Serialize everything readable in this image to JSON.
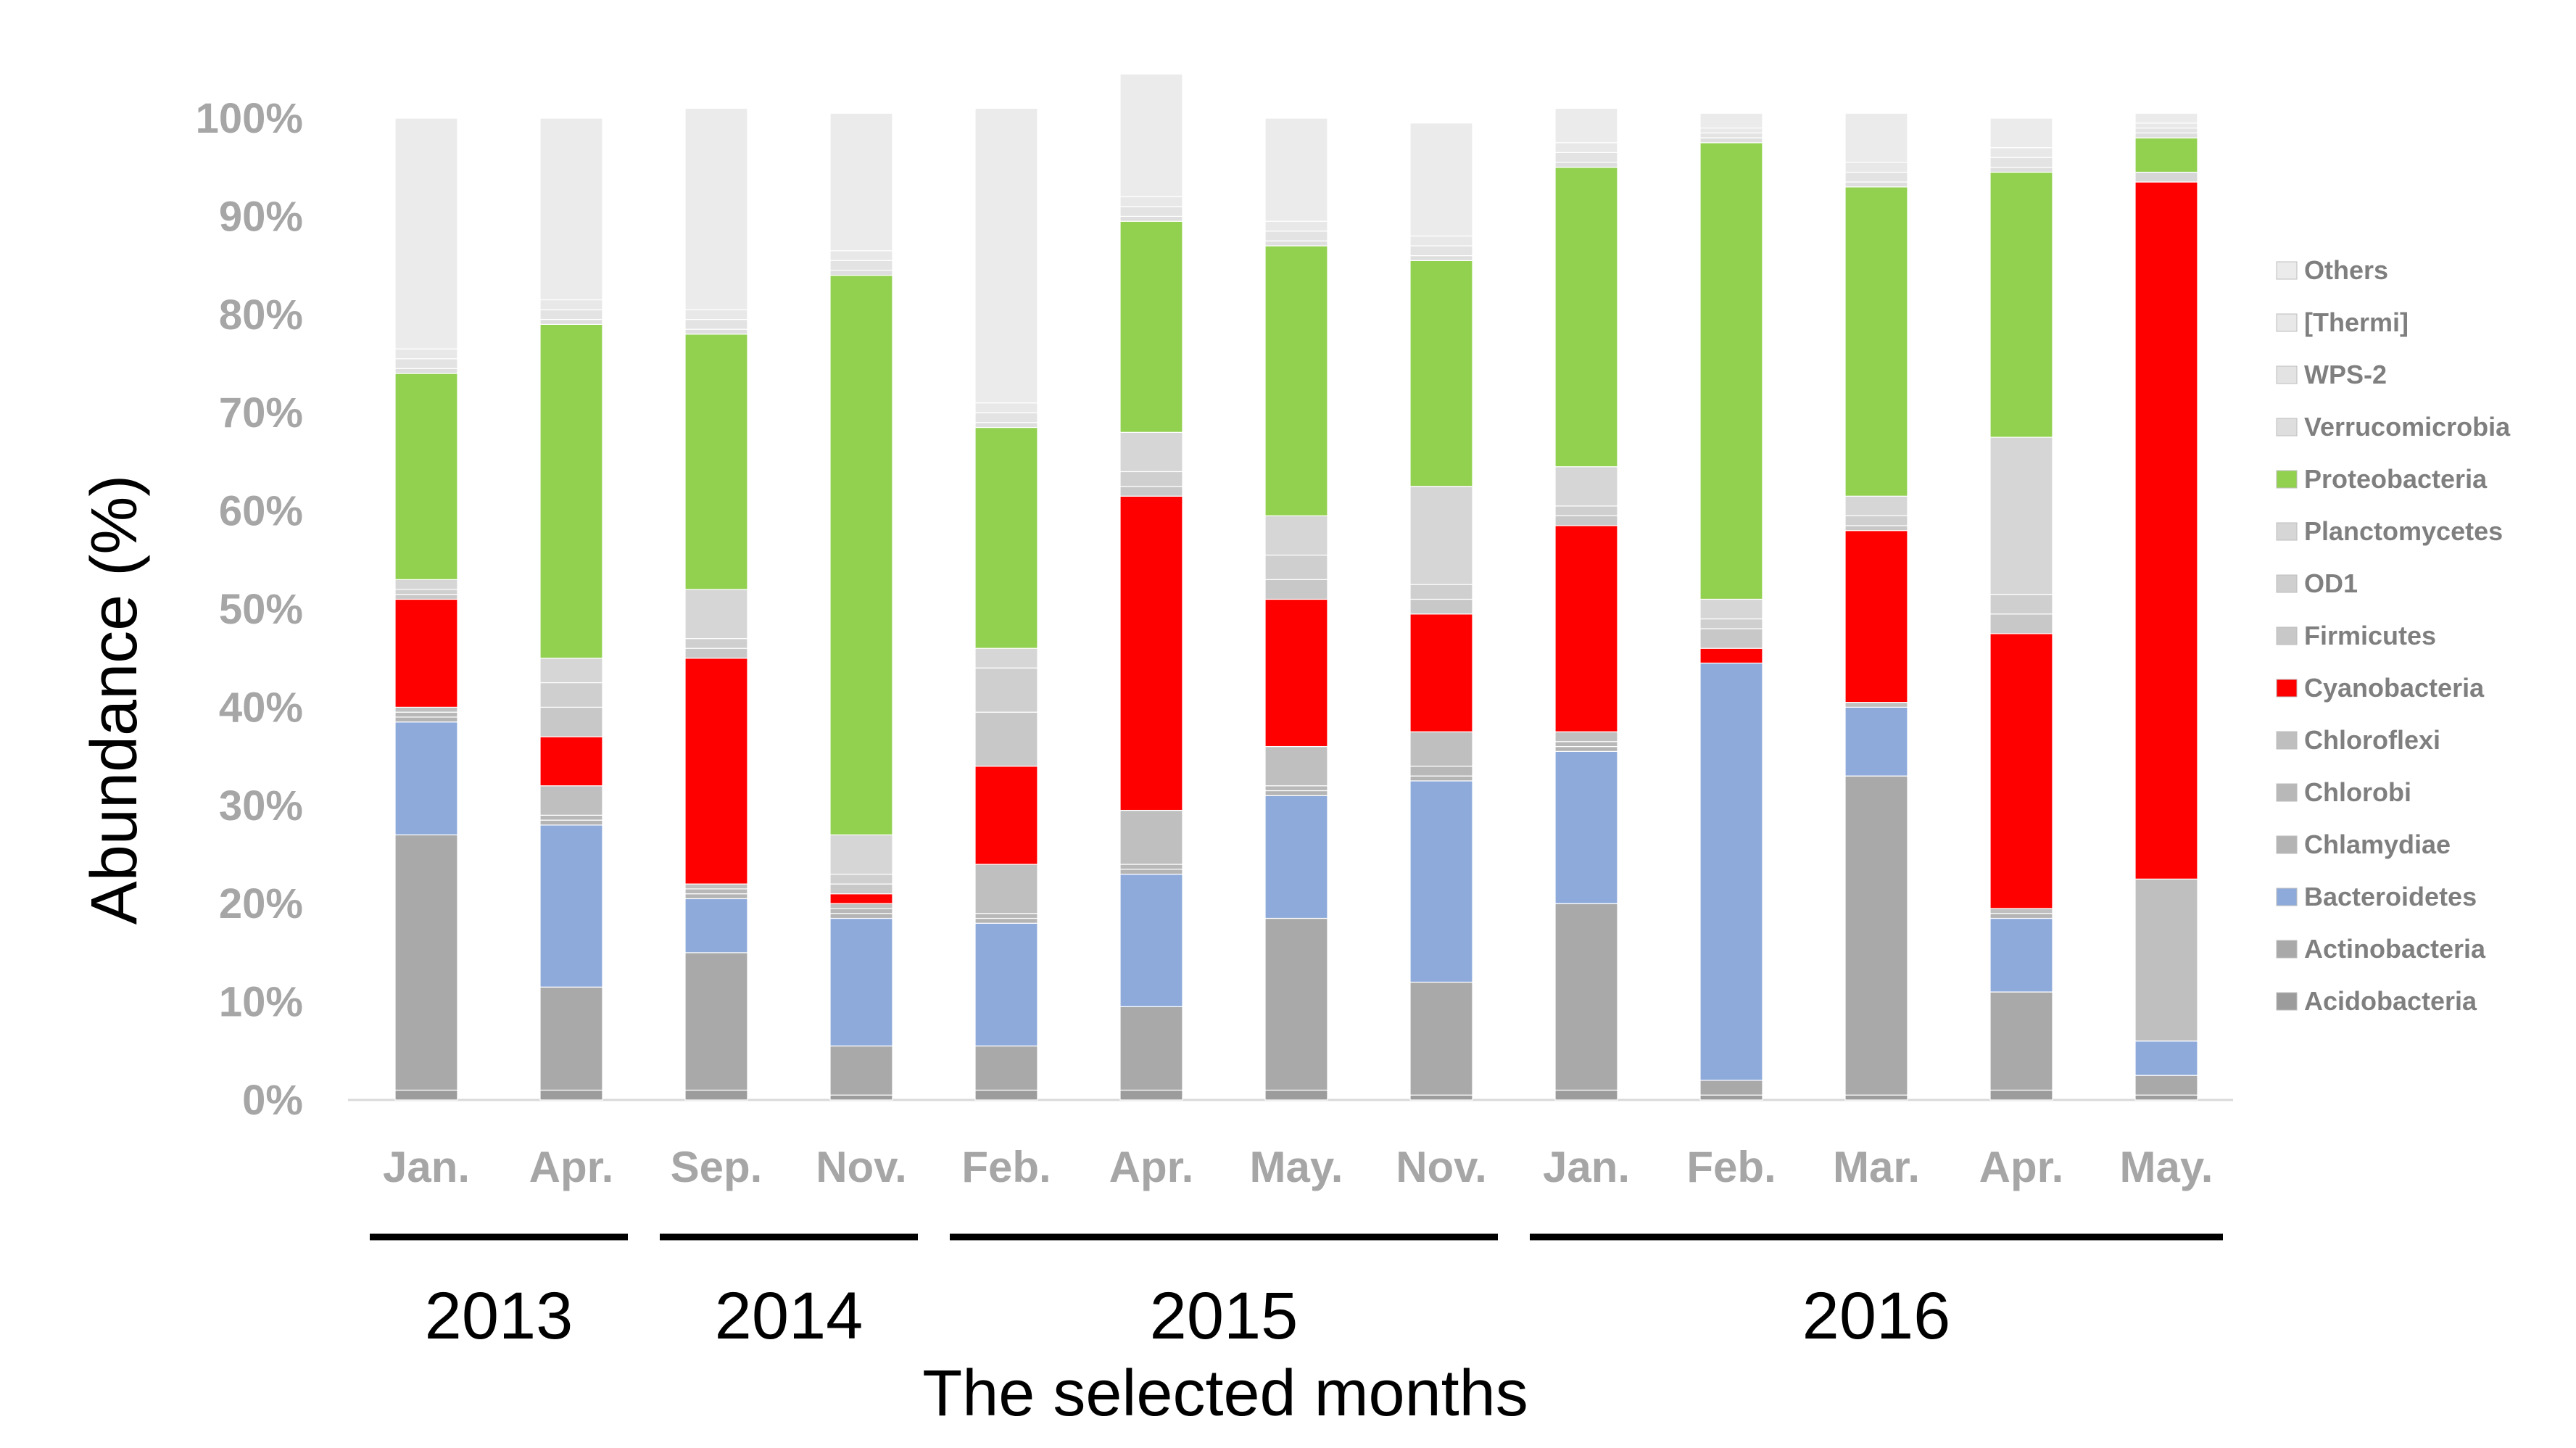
{
  "chart_data": {
    "type": "bar",
    "stacked": true,
    "ylabel": "Abundance (%)",
    "xlabel": "The selected months",
    "ylim": [
      0,
      100
    ],
    "yticks": [
      "0%",
      "10%",
      "20%",
      "30%",
      "40%",
      "50%",
      "60%",
      "70%",
      "80%",
      "90%",
      "100%"
    ],
    "categories": [
      "Jan.",
      "Apr.",
      "Sep.",
      "Nov.",
      "Feb.",
      "Apr.",
      "May.",
      "Nov.",
      "Jan.",
      "Feb.",
      "Mar.",
      "Apr.",
      "May."
    ],
    "year_groups": [
      {
        "label": "2013",
        "start": 0,
        "end": 1
      },
      {
        "label": "2014",
        "start": 2,
        "end": 3
      },
      {
        "label": "2015",
        "start": 4,
        "end": 7
      },
      {
        "label": "2016",
        "start": 8,
        "end": 12
      }
    ],
    "legend_placement": "right",
    "series": [
      {
        "name": "Acidobacteria",
        "color": "#9c9c9c",
        "values": [
          1,
          1,
          1,
          0.5,
          1,
          1,
          1,
          0.5,
          1,
          0.5,
          0.5,
          1,
          0.5
        ]
      },
      {
        "name": "Actinobacteria",
        "color": "#a9a9a9",
        "values": [
          26,
          10.5,
          14,
          5,
          4.5,
          8.5,
          17.5,
          11.5,
          19,
          1.5,
          32.5,
          10,
          2
        ]
      },
      {
        "name": "Bacteroidetes",
        "color": "#8eaadb",
        "values": [
          11.5,
          16.5,
          5.5,
          13,
          12.5,
          13.5,
          12.5,
          20.5,
          15.5,
          42.5,
          7,
          7.5,
          3.5
        ]
      },
      {
        "name": "Chlamydiae",
        "color": "#b4b4b4",
        "values": [
          0.5,
          0.5,
          0.5,
          0.5,
          0.5,
          0.5,
          0.5,
          0.5,
          0.5,
          0,
          0,
          0.5,
          0
        ]
      },
      {
        "name": "Chlorobi",
        "color": "#b8b8b8",
        "values": [
          0.5,
          0.5,
          0.5,
          0.5,
          0.5,
          0.5,
          0.5,
          1,
          0.5,
          0,
          0,
          0,
          0
        ]
      },
      {
        "name": "Chloroflexi",
        "color": "#bfbfbf",
        "values": [
          0.5,
          3,
          0.5,
          0.5,
          5,
          5.5,
          4,
          3.5,
          1,
          0,
          0.5,
          0.5,
          16.5
        ]
      },
      {
        "name": "Cyanobacteria",
        "color": "#ff0000",
        "values": [
          11,
          5,
          23,
          1,
          10,
          32,
          15,
          12,
          21,
          1.5,
          17.5,
          28,
          71
        ]
      },
      {
        "name": "Firmicutes",
        "color": "#c8c8c8",
        "values": [
          0.5,
          3,
          1,
          1,
          5.5,
          1,
          2,
          1.5,
          1,
          2,
          0.5,
          2,
          0
        ]
      },
      {
        "name": "OD1",
        "color": "#cfcfcf",
        "values": [
          0.5,
          2.5,
          1,
          1,
          4.5,
          1.5,
          2.5,
          1.5,
          1,
          1,
          1,
          2,
          0
        ]
      },
      {
        "name": "Planctomycetes",
        "color": "#d6d6d6",
        "values": [
          1,
          2.5,
          5,
          4,
          2,
          4,
          4,
          10,
          4,
          2,
          2,
          16,
          1
        ]
      },
      {
        "name": "Proteobacteria",
        "color": "#92d050",
        "values": [
          21,
          34,
          26,
          57,
          22.5,
          21.5,
          27.5,
          23,
          30.5,
          46.5,
          31.5,
          27,
          3.5
        ]
      },
      {
        "name": "Verrucomicrobia",
        "color": "#dedede",
        "values": [
          0.5,
          0.5,
          0.5,
          0.5,
          0.5,
          0.5,
          0.5,
          0.5,
          0.5,
          0.5,
          0.5,
          0.5,
          0.5
        ]
      },
      {
        "name": "WPS-2",
        "color": "#e3e3e3",
        "values": [
          1,
          1,
          1,
          1,
          1,
          1,
          1,
          1,
          1,
          0.5,
          1,
          1,
          0.5
        ]
      },
      {
        "name": "[Thermi]",
        "color": "#e8e8e8",
        "values": [
          1,
          1,
          1,
          1,
          1,
          1,
          1,
          1,
          1,
          0.5,
          1,
          1,
          0.5
        ]
      },
      {
        "name": "Others",
        "color": "#ebebeb",
        "values": [
          23.5,
          18.5,
          20.5,
          14,
          30,
          12.5,
          10.5,
          11.5,
          3.5,
          1.5,
          5,
          3,
          1
        ]
      }
    ],
    "legend_order": [
      "Others",
      "[Thermi]",
      "WPS-2",
      "Verrucomicrobia",
      "Proteobacteria",
      "Planctomycetes",
      "OD1",
      "Firmicutes",
      "Cyanobacteria",
      "Chloroflexi",
      "Chlorobi",
      "Chlamydiae",
      "Bacteroidetes",
      "Actinobacteria",
      "Acidobacteria"
    ]
  }
}
